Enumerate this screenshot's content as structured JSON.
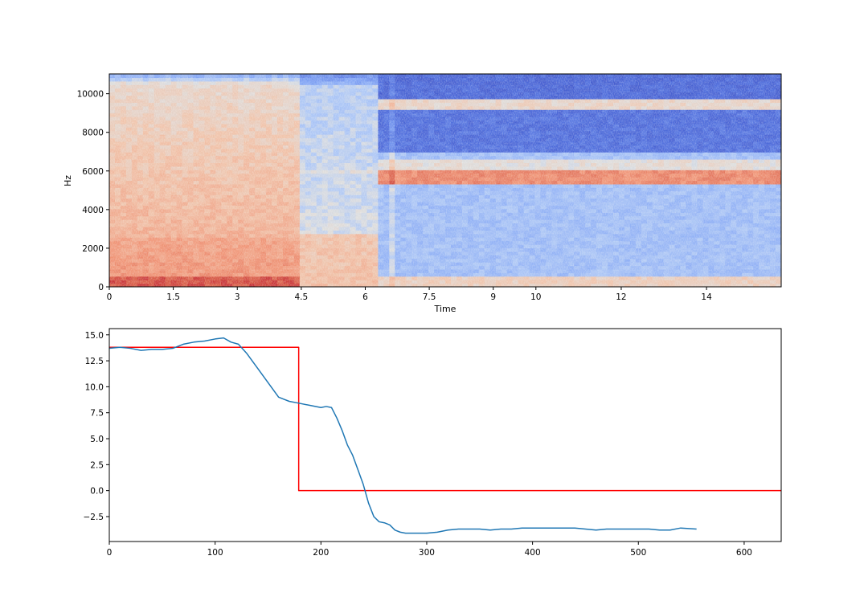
{
  "chart_data": [
    {
      "type": "heatmap",
      "title": "",
      "xlabel": "Time",
      "ylabel": "Hz",
      "xlim": [
        0,
        15.75
      ],
      "ylim": [
        0,
        11025
      ],
      "xticks": [
        0,
        1.5,
        3,
        4.5,
        6,
        7.5,
        9,
        10,
        12,
        14
      ],
      "xtick_labels": [
        "0",
        "1.5",
        "3",
        "4.5",
        "6",
        "7.5",
        "9",
        "10",
        "12",
        "14"
      ],
      "yticks": [
        0,
        2000,
        4000,
        6000,
        8000,
        10000
      ],
      "ytick_labels": [
        "0",
        "2000",
        "4000",
        "6000",
        "8000",
        "10000"
      ],
      "colormap": "coolwarm",
      "colors": {
        "low": "#3b4cc0",
        "mid": "#dddddd",
        "high": "#b40426"
      },
      "segments": [
        {
          "x_range": [
            0,
            4.4
          ],
          "description_level": "warm"
        },
        {
          "x_range": [
            4.4,
            6.3
          ],
          "description_level": "neutral"
        },
        {
          "x_range": [
            6.3,
            15.75
          ],
          "description_level": "cool"
        }
      ],
      "features": [
        {
          "x_range": [
            6.3,
            15.75
          ],
          "hz_range": [
            5500,
            6000
          ],
          "level": "warm band"
        },
        {
          "x_range": [
            6.3,
            15.75
          ],
          "hz_range": [
            9300,
            9700
          ],
          "level": "neutral band"
        }
      ]
    },
    {
      "type": "line",
      "title": "",
      "xlabel": "",
      "ylabel": "",
      "xlim": [
        0,
        635
      ],
      "ylim": [
        -4.9,
        15.6
      ],
      "xticks": [
        0,
        100,
        200,
        300,
        400,
        500,
        600
      ],
      "xtick_labels": [
        "0",
        "100",
        "200",
        "300",
        "400",
        "500",
        "600"
      ],
      "yticks": [
        -2.5,
        0.0,
        2.5,
        5.0,
        7.5,
        10.0,
        12.5,
        15.0
      ],
      "ytick_labels": [
        "−2.5",
        "0.0",
        "2.5",
        "5.0",
        "7.5",
        "10.0",
        "12.5",
        "15.0"
      ],
      "series": [
        {
          "color": "#1f77b4",
          "x": [
            0,
            10,
            20,
            30,
            40,
            50,
            60,
            70,
            80,
            90,
            100,
            108,
            115,
            122,
            130,
            140,
            150,
            160,
            165,
            170,
            180,
            190,
            200,
            205,
            210,
            215,
            220,
            225,
            230,
            235,
            240,
            245,
            250,
            255,
            260,
            265,
            270,
            275,
            280,
            290,
            300,
            310,
            320,
            330,
            340,
            350,
            360,
            370,
            380,
            390,
            400,
            410,
            420,
            430,
            440,
            450,
            460,
            470,
            480,
            490,
            500,
            510,
            520,
            530,
            540,
            555
          ],
          "y": [
            13.7,
            13.8,
            13.7,
            13.5,
            13.6,
            13.6,
            13.7,
            14.1,
            14.3,
            14.4,
            14.6,
            14.7,
            14.3,
            14.1,
            13.2,
            11.8,
            10.4,
            9.0,
            8.8,
            8.6,
            8.4,
            8.2,
            8.0,
            8.1,
            8.0,
            7.0,
            5.8,
            4.4,
            3.4,
            2.0,
            0.6,
            -1.2,
            -2.5,
            -3.0,
            -3.1,
            -3.3,
            -3.8,
            -4.0,
            -4.1,
            -4.1,
            -4.1,
            -4.0,
            -3.8,
            -3.7,
            -3.7,
            -3.7,
            -3.8,
            -3.7,
            -3.7,
            -3.6,
            -3.6,
            -3.6,
            -3.6,
            -3.6,
            -3.6,
            -3.7,
            -3.8,
            -3.7,
            -3.7,
            -3.7,
            -3.7,
            -3.7,
            -3.8,
            -3.8,
            -3.6,
            -3.7
          ]
        },
        {
          "color": "#ff0000",
          "x": [
            0,
            179,
            179,
            635
          ],
          "y": [
            13.8,
            13.8,
            0.0,
            0.0
          ]
        }
      ]
    }
  ]
}
